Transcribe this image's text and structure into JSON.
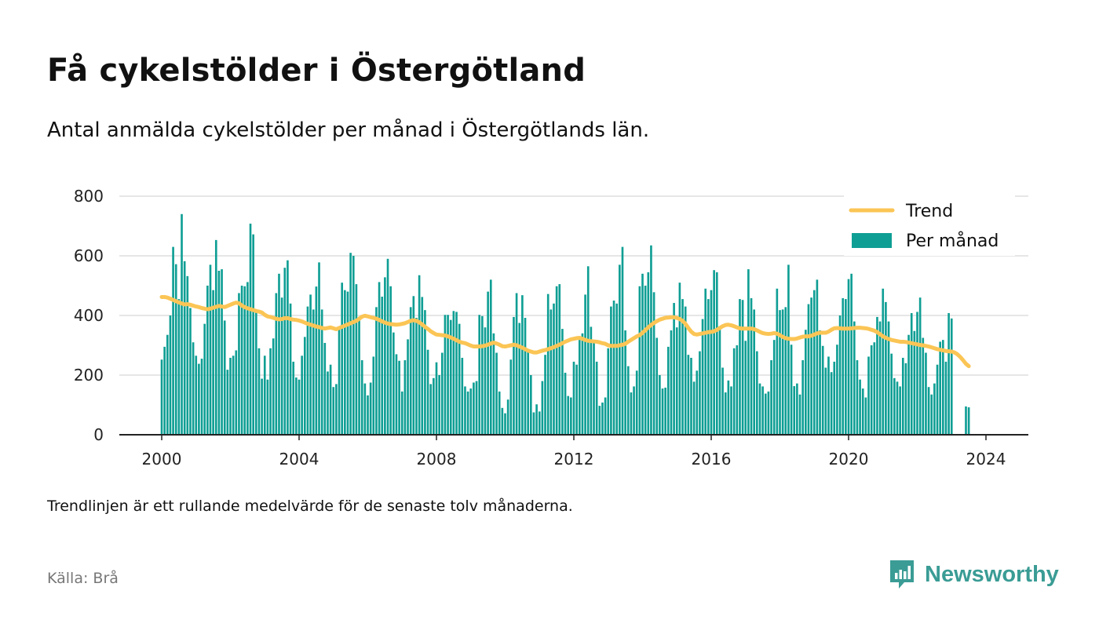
{
  "header": {
    "title": "Få cykelstölder i Östergötland",
    "subtitle": "Antal anmälda cykelstölder per månad i Östergötlands län."
  },
  "footer": {
    "note": "Trendlinjen är ett rullande medelvärde för de senaste tolv månaderna.",
    "source": "Källa: Brå",
    "brand": "Newsworthy"
  },
  "colors": {
    "bars": "#0e9e94",
    "trend": "#fbc555",
    "brand": "#3a9c95",
    "grid": "#dddddd"
  },
  "chart_data": {
    "type": "bar",
    "title": "Få cykelstölder i Östergötland",
    "subtitle": "Antal anmälda cykelstölder per månad i Östergötlands län.",
    "x_start": "2000-01",
    "x_end": "2023-12",
    "x_ticks": [
      "2000",
      "2004",
      "2008",
      "2012",
      "2016",
      "2020",
      "2024"
    ],
    "y_ticks": [
      0,
      200,
      400,
      600,
      800
    ],
    "ylim": [
      0,
      800
    ],
    "grid": true,
    "legend_position": "top-right",
    "series": [
      {
        "name": "Per månad",
        "kind": "bar",
        "values": [
          252,
          295,
          335,
          400,
          630,
          572,
          455,
          740,
          582,
          532,
          425,
          310,
          265,
          238,
          255,
          372,
          500,
          570,
          485,
          653,
          550,
          555,
          383,
          218,
          258,
          265,
          283,
          475,
          500,
          498,
          512,
          708,
          672,
          420,
          290,
          188,
          265,
          185,
          290,
          323,
          475,
          540,
          460,
          560,
          585,
          440,
          245,
          192,
          185,
          265,
          328,
          430,
          470,
          420,
          497,
          578,
          420,
          308,
          212,
          235,
          160,
          170,
          358,
          510,
          485,
          480,
          610,
          600,
          505,
          388,
          250,
          172,
          132,
          175,
          262,
          428,
          512,
          463,
          528,
          590,
          498,
          343,
          270,
          248,
          145,
          250,
          320,
          428,
          465,
          392,
          535,
          462,
          418,
          285,
          170,
          190,
          243,
          200,
          275,
          402,
          402,
          385,
          415,
          412,
          372,
          258,
          162,
          145,
          155,
          175,
          180,
          402,
          398,
          360,
          480,
          520,
          340,
          275,
          145,
          90,
          72,
          118,
          252,
          395,
          475,
          375,
          468,
          392,
          285,
          200,
          75,
          102,
          78,
          180,
          268,
          472,
          420,
          440,
          498,
          505,
          355,
          208,
          130,
          125,
          245,
          235,
          318,
          340,
          470,
          565,
          362,
          310,
          245,
          97,
          108,
          125,
          290,
          430,
          450,
          440,
          570,
          630,
          350,
          230,
          142,
          162,
          215,
          498,
          540,
          500,
          545,
          635,
          478,
          325,
          200,
          155,
          158,
          295,
          350,
          442,
          360,
          510,
          455,
          430,
          268,
          258,
          178,
          215,
          280,
          388,
          490,
          455,
          485,
          552,
          545,
          358,
          225,
          142,
          182,
          162,
          290,
          300,
          455,
          452,
          315,
          555,
          458,
          420,
          280,
          172,
          162,
          138,
          145,
          250,
          318,
          490,
          418,
          420,
          428,
          570,
          302,
          163,
          172,
          135,
          250,
          352,
          438,
          460,
          485,
          520,
          350,
          298,
          225,
          262,
          210,
          245,
          302,
          400,
          458,
          455,
          522,
          540,
          380,
          250,
          185,
          155,
          125,
          262,
          300,
          310,
          395,
          380,
          490,
          445,
          380,
          272,
          190,
          178,
          162,
          258,
          240,
          335,
          408,
          348,
          412,
          460,
          325,
          275,
          160,
          135,
          172,
          235,
          312,
          318,
          245,
          408,
          390,
          0,
          0,
          0,
          0,
          95,
          92
        ]
      },
      {
        "name": "Trend",
        "kind": "line",
        "values": [
          462,
          462,
          460,
          456,
          452,
          448,
          444,
          440,
          437,
          438,
          436,
          433,
          430,
          428,
          425,
          423,
          421,
          423,
          426,
          429,
          432,
          430,
          428,
          432,
          436,
          440,
          443,
          441,
          433,
          428,
          424,
          421,
          418,
          415,
          413,
          410,
          402,
          397,
          395,
          392,
          389,
          387,
          388,
          391,
          391,
          388,
          386,
          385,
          383,
          380,
          376,
          372,
          369,
          366,
          363,
          361,
          358,
          356,
          358,
          360,
          357,
          354,
          358,
          362,
          366,
          370,
          374,
          378,
          382,
          389,
          396,
          399,
          397,
          394,
          392,
          389,
          385,
          380,
          376,
          373,
          371,
          370,
          369,
          370,
          372,
          374,
          378,
          382,
          384,
          382,
          377,
          370,
          362,
          355,
          347,
          341,
          336,
          335,
          334,
          333,
          330,
          326,
          322,
          317,
          312,
          309,
          307,
          303,
          299,
          296,
          296,
          296,
          297,
          299,
          302,
          306,
          309,
          306,
          302,
          297,
          296,
          298,
          300,
          302,
          300,
          296,
          292,
          287,
          282,
          279,
          276,
          276,
          279,
          282,
          284,
          287,
          290,
          294,
          298,
          302,
          307,
          312,
          316,
          320,
          322,
          324,
          325,
          322,
          318,
          315,
          314,
          313,
          312,
          310,
          307,
          305,
          300,
          298,
          298,
          298,
          300,
          302,
          305,
          312,
          318,
          324,
          330,
          334,
          342,
          351,
          360,
          368,
          375,
          381,
          386,
          389,
          392,
          393,
          394,
          394,
          392,
          388,
          382,
          372,
          358,
          346,
          338,
          336,
          338,
          340,
          342,
          344,
          345,
          347,
          352,
          358,
          364,
          368,
          369,
          367,
          364,
          360,
          357,
          356,
          356,
          356,
          356,
          354,
          350,
          345,
          341,
          339,
          338,
          339,
          341,
          339,
          334,
          328,
          324,
          322,
          321,
          321,
          323,
          326,
          329,
          330,
          330,
          332,
          336,
          340,
          342,
          342,
          342,
          346,
          352,
          357,
          358,
          357,
          356,
          356,
          356,
          357,
          358,
          359,
          359,
          358,
          357,
          355,
          352,
          349,
          344,
          337,
          330,
          325,
          321,
          318,
          316,
          314,
          312,
          312,
          311,
          309,
          307,
          305,
          303,
          301,
          300,
          298,
          296,
          293,
          290,
          287,
          285,
          283,
          281,
          280,
          279,
          276,
          270,
          261,
          250,
          238,
          230
        ]
      }
    ]
  }
}
